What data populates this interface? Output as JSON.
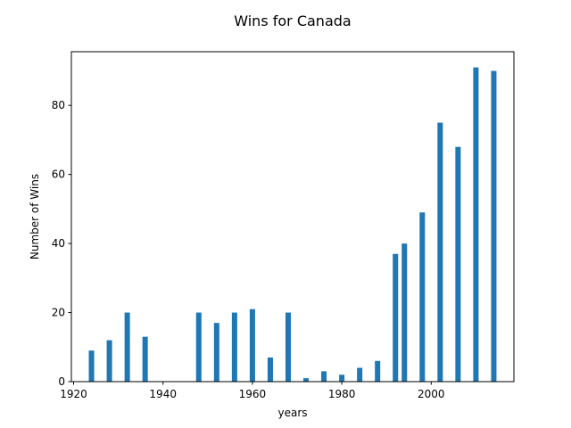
{
  "chart_data": {
    "type": "bar",
    "title": "Wins for Canada",
    "xlabel": "years",
    "ylabel": "Number of Wins",
    "x": [
      1924,
      1928,
      1932,
      1936,
      1948,
      1952,
      1956,
      1960,
      1964,
      1968,
      1972,
      1976,
      1980,
      1984,
      1988,
      1992,
      1994,
      1998,
      2002,
      2006,
      2010,
      2014
    ],
    "values": [
      9,
      12,
      20,
      13,
      20,
      17,
      20,
      21,
      7,
      20,
      1,
      3,
      2,
      4,
      6,
      37,
      40,
      49,
      75,
      68,
      91,
      90
    ],
    "bar_width_years": 1.2,
    "xlim": [
      1919.5,
      2018.5
    ],
    "ylim": [
      0,
      95.55
    ],
    "xticks": [
      1920,
      1940,
      1960,
      1980,
      2000
    ],
    "yticks": [
      0,
      20,
      40,
      60,
      80
    ],
    "grid": false,
    "colors": {
      "bar": "#1f77b4",
      "axis": "#000000"
    }
  }
}
